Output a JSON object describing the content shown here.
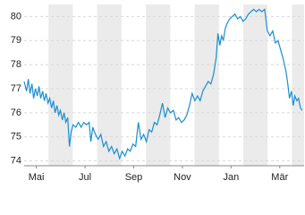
{
  "chart_data": {
    "type": "line",
    "x": [
      -0.5,
      -0.4,
      -0.33,
      -0.26,
      -0.18,
      -0.11,
      -0.04,
      0.04,
      0.11,
      0.18,
      0.26,
      0.33,
      0.4,
      0.48,
      0.55,
      0.63,
      0.7,
      0.77,
      0.85,
      0.92,
      0.99,
      1.07,
      1.14,
      1.21,
      1.29,
      1.36,
      1.43,
      1.51,
      1.62,
      1.73,
      1.84,
      1.95,
      2.06,
      2.17,
      2.24,
      2.32,
      2.43,
      2.54,
      2.65,
      2.76,
      2.87,
      2.98,
      3.09,
      3.2,
      3.31,
      3.42,
      3.53,
      3.64,
      3.75,
      3.86,
      3.97,
      4.08,
      4.19,
      4.3,
      4.41,
      4.52,
      4.63,
      4.74,
      4.85,
      4.96,
      5.07,
      5.18,
      5.29,
      5.4,
      5.51,
      5.63,
      5.74,
      5.85,
      5.96,
      6.07,
      6.18,
      6.29,
      6.4,
      6.51,
      6.62,
      6.73,
      6.84,
      6.95,
      7.06,
      7.17,
      7.28,
      7.39,
      7.46,
      7.54,
      7.61,
      7.68,
      7.76,
      7.83,
      7.94,
      8.05,
      8.16,
      8.27,
      8.38,
      8.49,
      8.6,
      8.71,
      8.82,
      8.93,
      9.04,
      9.15,
      9.26,
      9.38,
      9.49,
      9.6,
      9.71,
      9.82,
      9.93,
      10.04,
      10.15,
      10.26,
      10.33,
      10.4,
      10.48,
      10.55,
      10.62,
      10.7,
      10.77,
      10.85,
      10.92
    ],
    "values": [
      77.3,
      76.9,
      77.4,
      76.8,
      77.2,
      76.6,
      77.0,
      76.7,
      77.1,
      76.6,
      76.9,
      76.5,
      76.8,
      76.4,
      76.6,
      76.2,
      76.5,
      76.0,
      76.3,
      75.9,
      76.1,
      75.7,
      76.0,
      75.6,
      75.8,
      74.6,
      75.2,
      75.5,
      75.4,
      75.6,
      75.4,
      75.6,
      75.5,
      75.6,
      74.8,
      75.4,
      75.1,
      74.9,
      75.1,
      74.6,
      74.8,
      74.4,
      74.6,
      74.3,
      74.5,
      74.1,
      74.4,
      74.2,
      74.5,
      74.4,
      74.7,
      74.6,
      75.6,
      74.9,
      75.1,
      74.8,
      75.3,
      75.2,
      75.6,
      75.5,
      75.9,
      76.4,
      75.8,
      76.2,
      76.0,
      76.1,
      75.7,
      75.8,
      75.6,
      75.7,
      75.9,
      76.3,
      76.8,
      76.5,
      76.7,
      76.5,
      76.9,
      77.1,
      77.3,
      77.2,
      77.6,
      78.3,
      79.3,
      78.8,
      79.2,
      79.0,
      79.5,
      79.7,
      79.9,
      80.0,
      80.1,
      79.9,
      80.0,
      79.8,
      79.9,
      80.1,
      80.2,
      80.3,
      80.2,
      80.3,
      80.2,
      80.3,
      79.4,
      79.2,
      79.4,
      78.9,
      79.0,
      78.6,
      78.2,
      77.7,
      77.2,
      76.6,
      76.9,
      76.3,
      76.7,
      76.5,
      76.6,
      76.2,
      76.1
    ],
    "color": "#1a8fd1",
    "xlim": [
      -0.5,
      11
    ],
    "xticks": [
      {
        "value": 0,
        "label": "Mai"
      },
      {
        "value": 2,
        "label": "Jul"
      },
      {
        "value": 4,
        "label": "Sep"
      },
      {
        "value": 6,
        "label": "Nov"
      },
      {
        "value": 8,
        "label": "Jan"
      },
      {
        "value": 10,
        "label": "Mär"
      }
    ],
    "ylim": [
      73.8,
      80.5
    ],
    "yticks": [
      74,
      75,
      76,
      77,
      78,
      79,
      80
    ],
    "grid": true
  }
}
